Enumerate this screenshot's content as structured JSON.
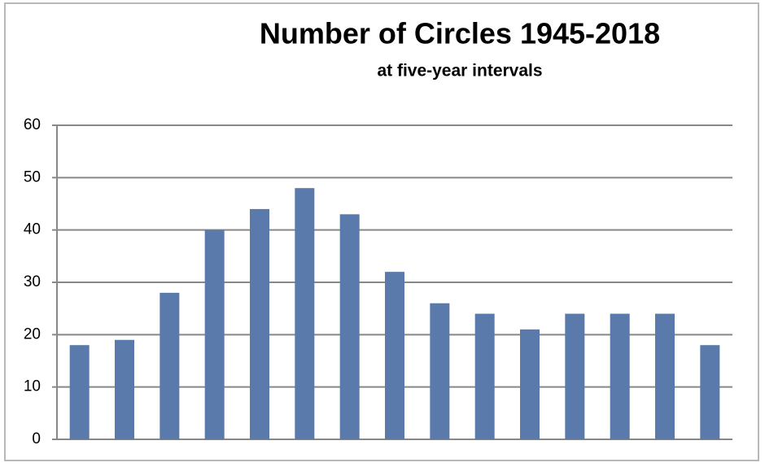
{
  "chart_data": {
    "type": "bar",
    "title": "Number of Circles 1945-2018",
    "subtitle": "at five-year intervals",
    "categories": [
      null,
      null,
      null,
      null,
      null,
      null,
      null,
      null,
      null,
      null,
      null,
      null,
      null,
      null,
      null
    ],
    "values": [
      18,
      19,
      28,
      40,
      44,
      48,
      43,
      32,
      26,
      24,
      21,
      24,
      24,
      24,
      18
    ],
    "color": "#5a7aab",
    "ylim": [
      0,
      60
    ],
    "yticks": [
      0,
      10,
      20,
      30,
      40,
      50,
      60
    ],
    "grid": true
  }
}
